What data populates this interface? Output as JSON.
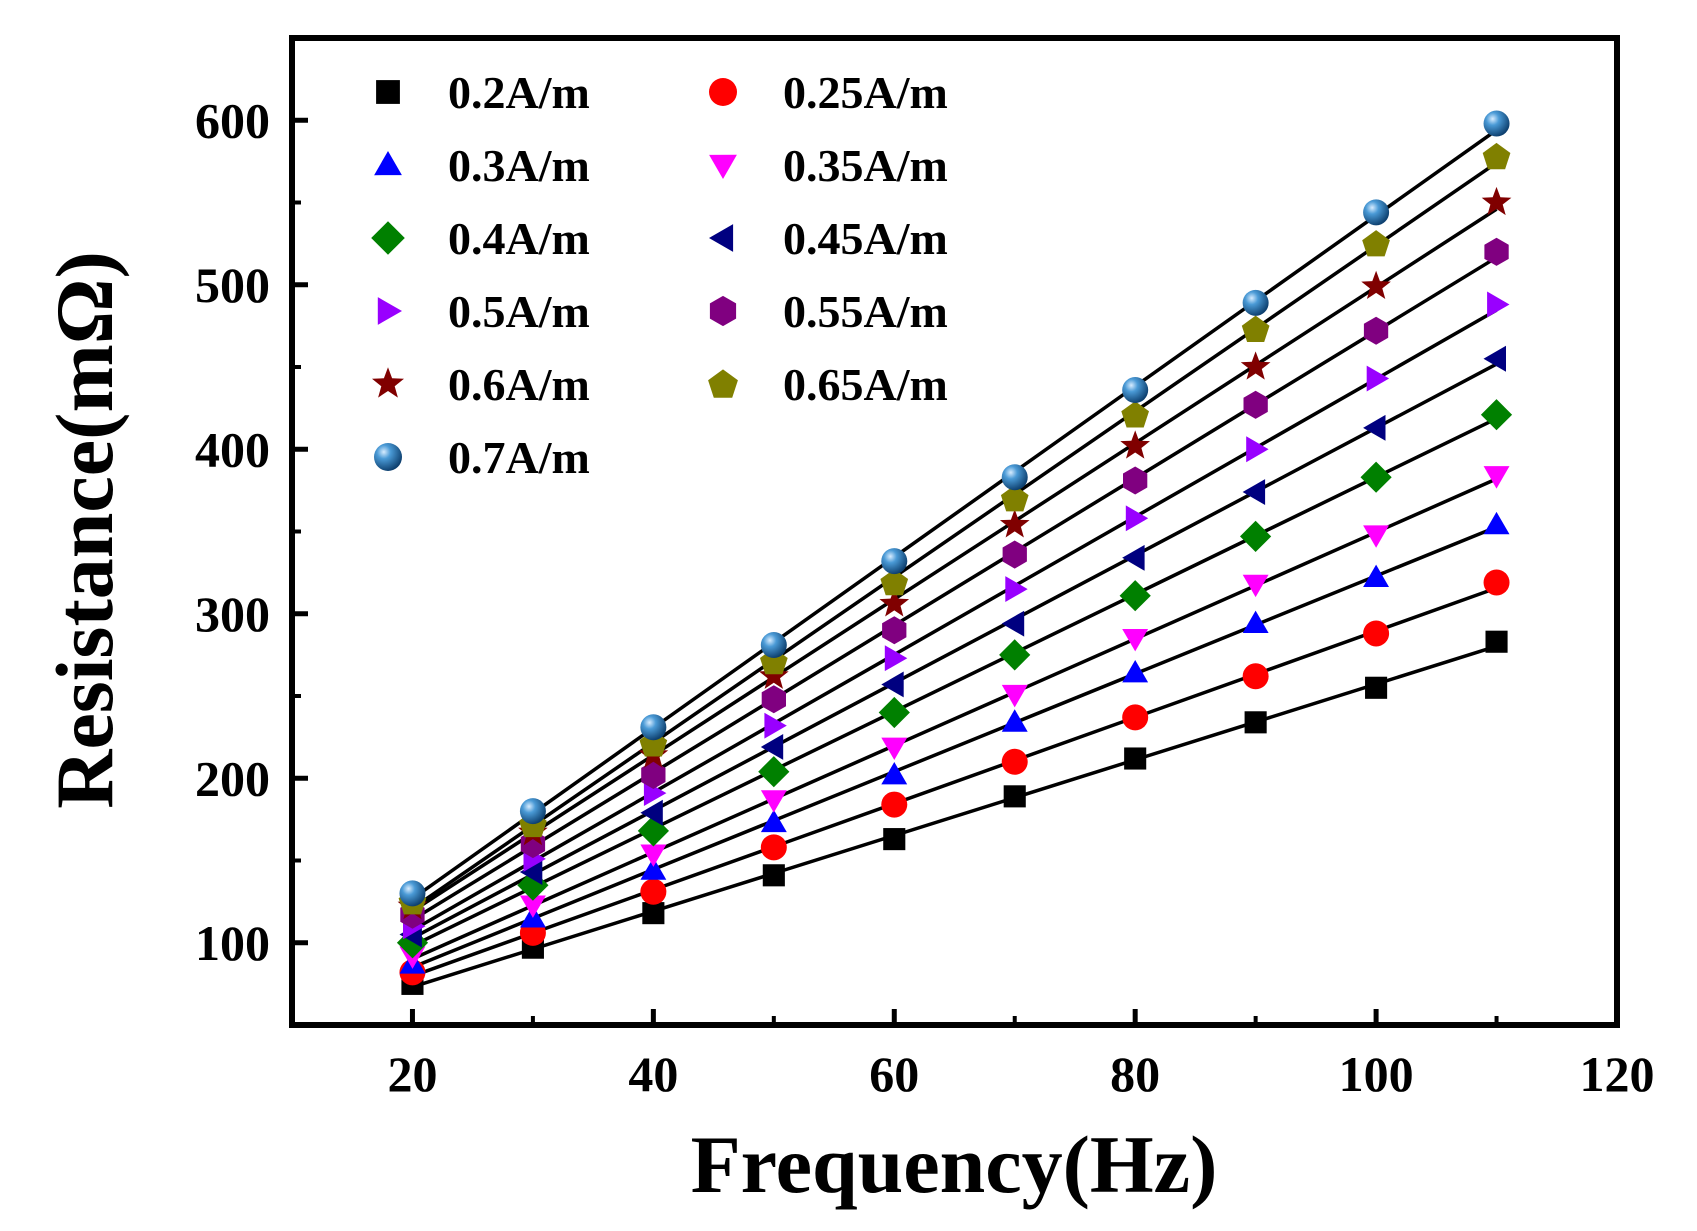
{
  "chart_data": {
    "type": "scatter",
    "title": "",
    "xlabel": "Frequency(Hz)",
    "ylabel": "Resistance(mΩ)",
    "xlim": [
      10,
      120
    ],
    "ylim": [
      50,
      650
    ],
    "x_ticks": [
      20,
      40,
      60,
      80,
      100,
      120
    ],
    "y_ticks": [
      100,
      200,
      300,
      400,
      500,
      600
    ],
    "x_tick_labels": [
      "20",
      "40",
      "60",
      "80",
      "100",
      "120"
    ],
    "y_tick_labels": [
      "100",
      "200",
      "300",
      "400",
      "500",
      "600"
    ],
    "grid": false,
    "legend_position": "top-left",
    "fit_lines": "linear fit per series",
    "x": [
      20,
      30,
      40,
      50,
      60,
      70,
      80,
      90,
      100,
      110
    ],
    "series": [
      {
        "name": "0.2A/m",
        "marker": "square",
        "color": "#000000",
        "values": [
          75,
          97,
          118,
          141,
          163,
          189,
          212,
          234,
          255,
          283
        ]
      },
      {
        "name": "0.25A/m",
        "marker": "circle",
        "color": "#ff0000",
        "values": [
          82,
          106,
          131,
          158,
          184,
          210,
          237,
          262,
          288,
          319
        ]
      },
      {
        "name": "0.3A/m",
        "marker": "triangle-up",
        "color": "#0000ff",
        "values": [
          87,
          115,
          144,
          173,
          202,
          234,
          264,
          294,
          322,
          354
        ]
      },
      {
        "name": "0.35A/m",
        "marker": "triangle-down",
        "color": "#ff00ff",
        "values": [
          92,
          123,
          154,
          187,
          219,
          251,
          285,
          318,
          348,
          384
        ]
      },
      {
        "name": "0.4A/m",
        "marker": "diamond",
        "color": "#008000",
        "values": [
          100,
          135,
          168,
          204,
          240,
          275,
          311,
          347,
          383,
          421
        ]
      },
      {
        "name": "0.45A/m",
        "marker": "triangle-left",
        "color": "#000080",
        "values": [
          105,
          143,
          179,
          219,
          257,
          294,
          334,
          374,
          413,
          455
        ]
      },
      {
        "name": "0.5A/m",
        "marker": "triangle-right",
        "color": "#9900ff",
        "values": [
          110,
          151,
          191,
          232,
          273,
          315,
          358,
          400,
          443,
          488
        ]
      },
      {
        "name": "0.55A/m",
        "marker": "hexagon",
        "color": "#800080",
        "values": [
          117,
          160,
          202,
          248,
          290,
          336,
          381,
          427,
          472,
          520
        ]
      },
      {
        "name": "0.6A/m",
        "marker": "star",
        "color": "#800000",
        "values": [
          122,
          167,
          214,
          262,
          306,
          354,
          402,
          450,
          499,
          550
        ]
      },
      {
        "name": "0.65A/m",
        "marker": "pentagon",
        "color": "#808000",
        "values": [
          125,
          172,
          221,
          271,
          319,
          370,
          421,
          473,
          525,
          578
        ]
      },
      {
        "name": "0.7A/m",
        "marker": "sphere",
        "color": "#1f6fa8",
        "values": [
          130,
          180,
          231,
          281,
          332,
          383,
          436,
          489,
          544,
          598
        ]
      }
    ]
  }
}
